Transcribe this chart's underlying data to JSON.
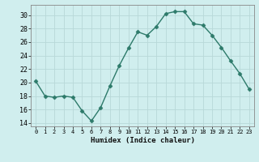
{
  "x": [
    0,
    1,
    2,
    3,
    4,
    5,
    6,
    7,
    8,
    9,
    10,
    11,
    12,
    13,
    14,
    15,
    16,
    17,
    18,
    19,
    20,
    21,
    22,
    23
  ],
  "y": [
    20.2,
    18.0,
    17.8,
    18.0,
    17.8,
    15.8,
    14.3,
    16.3,
    19.5,
    22.5,
    25.1,
    27.5,
    27.0,
    28.3,
    30.2,
    30.5,
    30.5,
    28.7,
    28.5,
    27.0,
    25.2,
    23.2,
    21.3,
    19.0
  ],
  "xlabel": "Humidex (Indice chaleur)",
  "xlim": [
    -0.5,
    23.5
  ],
  "ylim": [
    13.5,
    31.5
  ],
  "yticks": [
    14,
    16,
    18,
    20,
    22,
    24,
    26,
    28,
    30
  ],
  "xticks": [
    0,
    1,
    2,
    3,
    4,
    5,
    6,
    7,
    8,
    9,
    10,
    11,
    12,
    13,
    14,
    15,
    16,
    17,
    18,
    19,
    20,
    21,
    22,
    23
  ],
  "line_color": "#2d7a6a",
  "marker_color": "#2d7a6a",
  "bg_color": "#d0eeee",
  "grid_color": "#b8d8d8",
  "spine_color": "#888888"
}
